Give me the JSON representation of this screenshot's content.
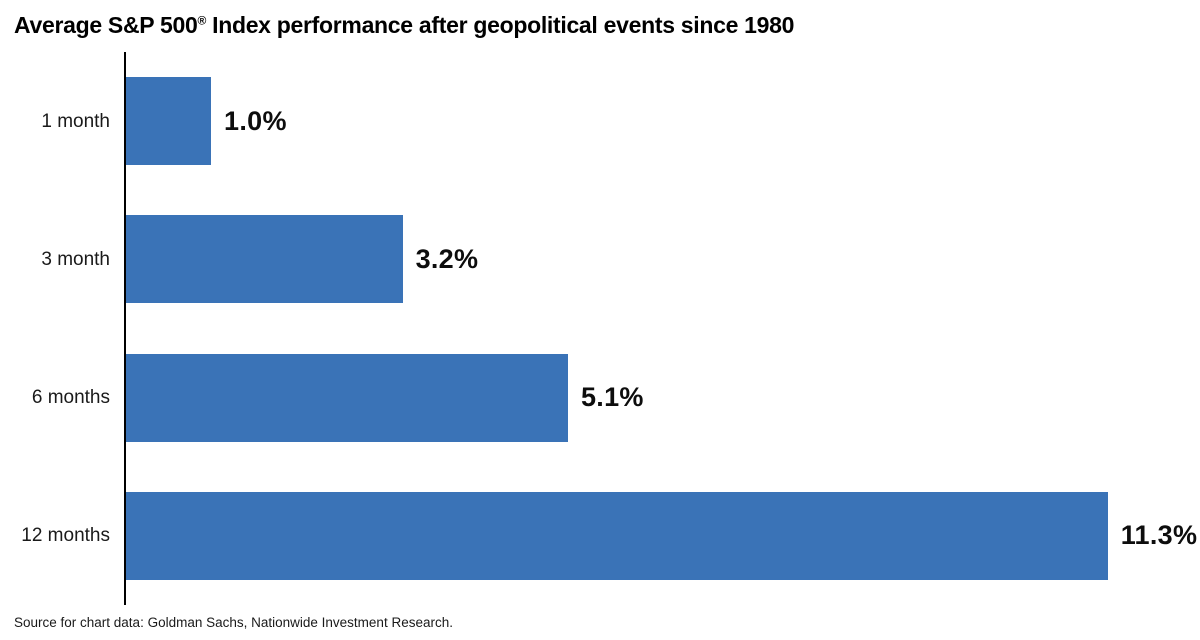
{
  "title": {
    "pre": "Average S&P 500",
    "reg": "®",
    "post": " Index performance after geopolitical events since 1980"
  },
  "source": "Source for chart data: Goldman Sachs, Nationwide Investment Research.",
  "colors": {
    "bar": "#3A73B7",
    "axis": "#000000",
    "text": "#111111"
  },
  "chart_data": {
    "type": "bar",
    "orientation": "horizontal",
    "title": "Average S&P 500® Index performance after geopolitical events since 1980",
    "categories": [
      "1 month",
      "3 month",
      "6 months",
      "12 months"
    ],
    "values": [
      1.0,
      3.2,
      5.1,
      11.3
    ],
    "value_labels": [
      "1.0%",
      "3.2%",
      "5.1%",
      "11.3%"
    ],
    "xlabel": "",
    "ylabel": "",
    "xlim": [
      0,
      12.36
    ],
    "grid": false,
    "legend": false,
    "annotation": "Source for chart data: Goldman Sachs, Nationwide Investment Research."
  }
}
